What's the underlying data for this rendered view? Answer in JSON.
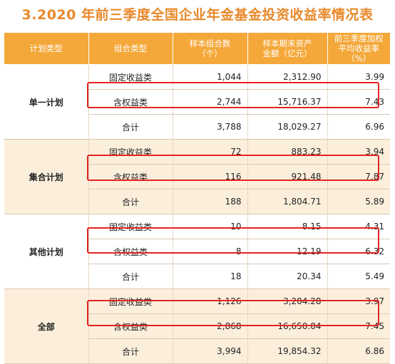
{
  "title": "3.2020 年前三季度全国企业年金基金投资收益率情况表",
  "headers": {
    "plan_type": "计划类型",
    "portfolio_type": "组合类型",
    "count_line1": "样本组合数",
    "count_line2": "（个）",
    "assets_line1": "样本期末资产",
    "assets_line2": "金额（亿元）",
    "yield_line1": "前三季度加权",
    "yield_line2": "平均收益率（%）"
  },
  "groups": [
    {
      "plan": "单一计划",
      "rows": [
        {
          "type": "固定收益类",
          "count": "1,044",
          "assets": "2,312.90",
          "yield": "3.99"
        },
        {
          "type": "含权益类",
          "count": "2,744",
          "assets": "15,716.37",
          "yield": "7.43"
        },
        {
          "type": "合计",
          "count": "3,788",
          "assets": "18,029.27",
          "yield": "6.96"
        }
      ]
    },
    {
      "plan": "集合计划",
      "rows": [
        {
          "type": "固定收益类",
          "count": "72",
          "assets": "883.23",
          "yield": "3.94"
        },
        {
          "type": "含权益类",
          "count": "116",
          "assets": "921.48",
          "yield": "7.87"
        },
        {
          "type": "合计",
          "count": "188",
          "assets": "1,804.71",
          "yield": "5.89"
        }
      ]
    },
    {
      "plan": "其他计划",
      "rows": [
        {
          "type": "固定收益类",
          "count": "10",
          "assets": "8.15",
          "yield": "4.31"
        },
        {
          "type": "含权益类",
          "count": "8",
          "assets": "12.19",
          "yield": "6.32"
        },
        {
          "type": "合计",
          "count": "18",
          "assets": "20.34",
          "yield": "5.49"
        }
      ]
    },
    {
      "plan": "全部",
      "rows": [
        {
          "type": "固定收益类",
          "count": "1,126",
          "assets": "3,204.28",
          "yield": "3.97"
        },
        {
          "type": "含权益类",
          "count": "2,868",
          "assets": "16,650.04",
          "yield": "7.45"
        },
        {
          "type": "合计",
          "count": "3,994",
          "assets": "19,854.32",
          "yield": "6.86"
        }
      ]
    }
  ],
  "colors": {
    "title": "#e8892b",
    "header_bg": "#f4a83a",
    "alt_group_bg": "#fbefdc",
    "highlight_border": "#e52222"
  }
}
